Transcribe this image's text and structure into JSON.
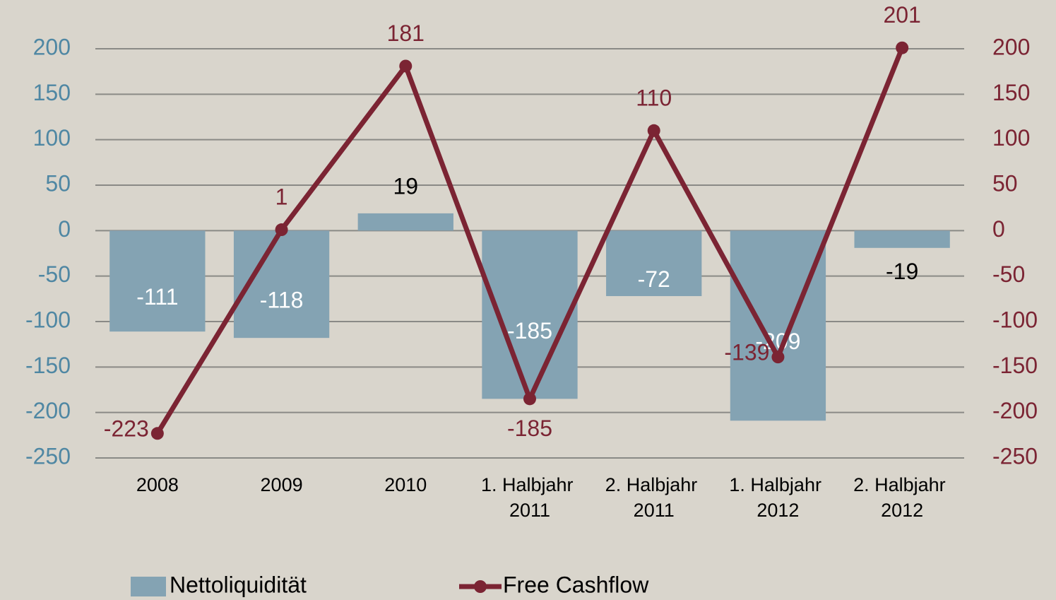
{
  "chart_data": {
    "type": "bar_line",
    "categories": [
      "2008",
      "2009",
      "2010",
      "1. Halbjahr 2011",
      "2. Halbjahr 2011",
      "1. Halbjahr 2012",
      "2. Halbjahr 2012"
    ],
    "series": [
      {
        "name": "Nettoliquidität",
        "type": "bar",
        "color": "#84a3b3",
        "values": [
          -111,
          -118,
          19,
          -185,
          -72,
          -209,
          -19
        ]
      },
      {
        "name": "Free Cashflow",
        "type": "line",
        "axis": "y2",
        "color": "#7b2433",
        "values": [
          -223,
          1,
          181,
          -185,
          110,
          -139,
          201
        ]
      }
    ],
    "ylim": [
      -250,
      200
    ],
    "yticks": [
      -250,
      -200,
      -150,
      -100,
      -50,
      0,
      50,
      100,
      150,
      200
    ],
    "y2lim": [
      -250,
      200
    ],
    "y2ticks": [
      -250,
      -200,
      -150,
      -100,
      -50,
      0,
      50,
      100,
      150,
      200
    ],
    "grid": true,
    "legend": "bottom"
  }
}
